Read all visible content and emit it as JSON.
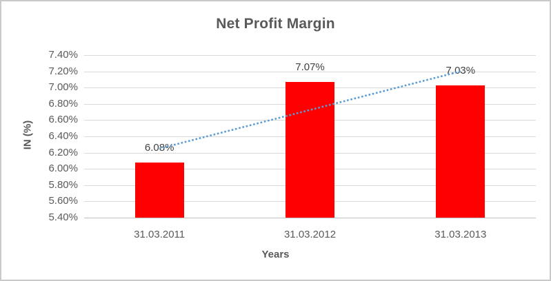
{
  "chart_data": {
    "type": "bar",
    "title": "Net Profit Margin",
    "xlabel": "Years",
    "ylabel": "IN (%)",
    "categories": [
      "31.03.2011",
      "31.03.2012",
      "31.03.2013"
    ],
    "values": [
      6.08,
      7.07,
      7.03
    ],
    "data_labels": [
      "6.08%",
      "7.07%",
      "7.03%"
    ],
    "ylim": [
      5.4,
      7.4
    ],
    "ytick_step": 0.2,
    "ytick_labels": [
      "5.40%",
      "5.60%",
      "5.80%",
      "6.00%",
      "6.20%",
      "6.40%",
      "6.60%",
      "6.80%",
      "7.00%",
      "7.20%",
      "7.40%"
    ],
    "grid": true,
    "legend": false,
    "bar_color": "#FF0000",
    "title_color": "#595959",
    "axis_text_color": "#595959",
    "data_label_color": "#404040",
    "trendline": {
      "type": "linear",
      "style": "dotted",
      "color": "#5B9BD5",
      "start_value": 6.25,
      "end_value": 7.2
    }
  }
}
